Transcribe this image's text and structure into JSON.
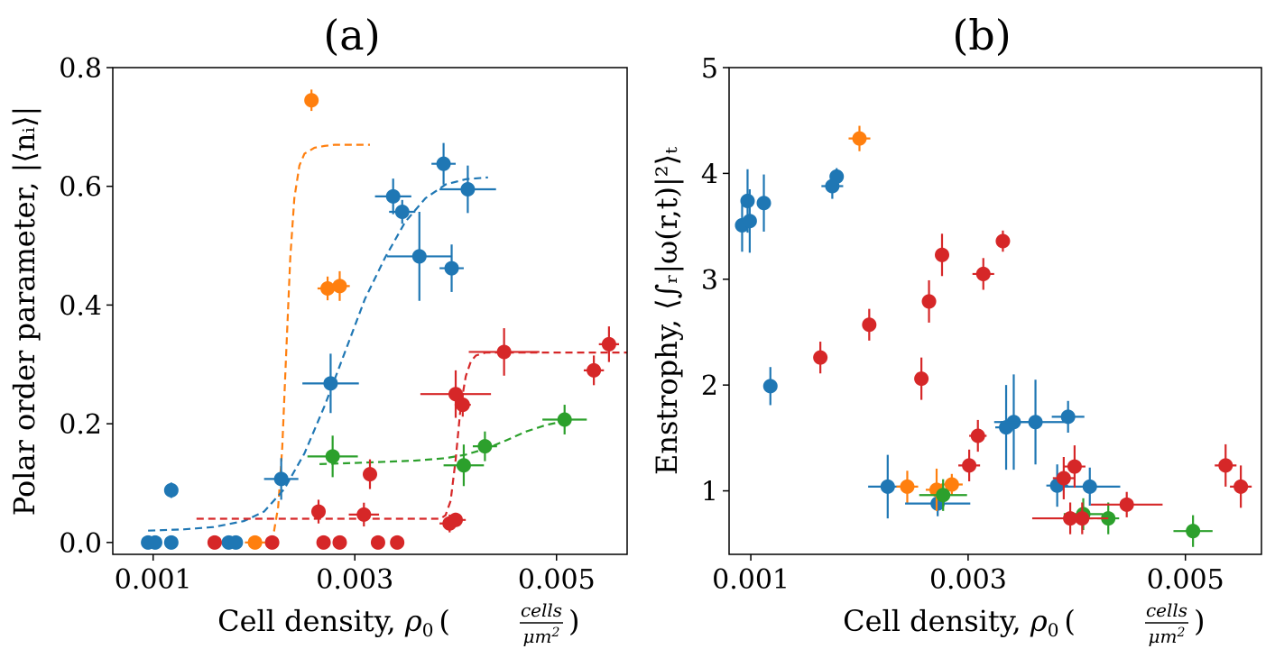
{
  "chart_data": [
    {
      "panel": "(a)",
      "type": "scatter",
      "title": "(a)",
      "xlabel": {
        "text": "Cell density, ",
        "symbol": "ρ",
        "sub": "0",
        "frac_num": "cells",
        "frac_den": "μm",
        "frac_den_sup": "2"
      },
      "ylabel": "Polar order parameter, |⟨nᵢ⟩|",
      "xlim": [
        0.0006,
        0.0057
      ],
      "ylim": [
        -0.02,
        0.8
      ],
      "xticks": [
        0.001,
        0.003,
        0.005
      ],
      "xtick_labels": [
        "0.001",
        "0.003",
        "0.005"
      ],
      "yticks": [
        0.0,
        0.2,
        0.4,
        0.6,
        0.8
      ],
      "ytick_labels": [
        "0.0",
        "0.2",
        "0.4",
        "0.6",
        "0.8"
      ],
      "series": [
        {
          "name": "blue",
          "color": "#1f77b4",
          "points": [
            {
              "x": 0.00095,
              "y": 0.0
            },
            {
              "x": 0.00102,
              "y": 0.0
            },
            {
              "x": 0.00118,
              "y": 0.0
            },
            {
              "x": 0.00118,
              "y": 0.088,
              "yerr": 0.013
            },
            {
              "x": 0.00175,
              "y": 0.0
            },
            {
              "x": 0.00182,
              "y": 0.0
            },
            {
              "x": 0.00227,
              "y": 0.107,
              "xerr": 0.00017,
              "yerr": 0.035
            },
            {
              "x": 0.00276,
              "y": 0.268,
              "xerr": 0.00028,
              "yerr": 0.05
            },
            {
              "x": 0.00338,
              "y": 0.583,
              "xerr": 0.00018,
              "yerr": 0.03
            },
            {
              "x": 0.00347,
              "y": 0.557,
              "xerr": 0.00013,
              "yerr": 0.02
            },
            {
              "x": 0.00364,
              "y": 0.482,
              "xerr": 0.00032,
              "yerr": 0.075
            },
            {
              "x": 0.00388,
              "y": 0.638,
              "xerr": 0.00012,
              "yerr": 0.035
            },
            {
              "x": 0.00396,
              "y": 0.462,
              "xerr": 0.00012,
              "yerr": 0.04
            },
            {
              "x": 0.00412,
              "y": 0.595,
              "xerr": 0.00028,
              "yerr": 0.04
            }
          ]
        },
        {
          "name": "orange",
          "color": "#ff7f0e",
          "points": [
            {
              "x": 0.00201,
              "y": 0.0,
              "xerr": 0.0001
            },
            {
              "x": 0.00257,
              "y": 0.745,
              "yerr": 0.018
            },
            {
              "x": 0.00273,
              "y": 0.428,
              "xerr": 0.0001,
              "yerr": 0.02
            },
            {
              "x": 0.00285,
              "y": 0.432,
              "xerr": 0.0001,
              "yerr": 0.025
            }
          ]
        },
        {
          "name": "green",
          "color": "#2ca02c",
          "points": [
            {
              "x": 0.00278,
              "y": 0.145,
              "xerr": 0.00025,
              "yerr": 0.035
            },
            {
              "x": 0.00408,
              "y": 0.13,
              "xerr": 0.0002,
              "yerr": 0.035
            },
            {
              "x": 0.00429,
              "y": 0.162,
              "xerr": 0.00012,
              "yerr": 0.025
            },
            {
              "x": 0.00508,
              "y": 0.207,
              "xerr": 0.00022,
              "yerr": 0.025
            }
          ]
        },
        {
          "name": "red",
          "color": "#d62728",
          "points": [
            {
              "x": 0.00161,
              "y": 0.0
            },
            {
              "x": 0.00218,
              "y": 0.0
            },
            {
              "x": 0.00264,
              "y": 0.052,
              "yerr": 0.02
            },
            {
              "x": 0.00269,
              "y": 0.0
            },
            {
              "x": 0.00285,
              "y": 0.0
            },
            {
              "x": 0.00309,
              "y": 0.047,
              "xerr": 0.00015,
              "yerr": 0.02
            },
            {
              "x": 0.00315,
              "y": 0.115,
              "yerr": 0.025
            },
            {
              "x": 0.00323,
              "y": 0.0
            },
            {
              "x": 0.00342,
              "y": 0.0
            },
            {
              "x": 0.00394,
              "y": 0.032,
              "xerr": 0.0001,
              "yerr": 0.015
            },
            {
              "x": 0.004,
              "y": 0.038,
              "xerr": 0.0001,
              "yerr": 0.012
            },
            {
              "x": 0.004,
              "y": 0.25,
              "xerr": 0.00035,
              "yerr": 0.04
            },
            {
              "x": 0.00407,
              "y": 0.232,
              "xerr": 8e-05,
              "yerr": 0.02
            },
            {
              "x": 0.00448,
              "y": 0.321,
              "xerr": 0.00035,
              "yerr": 0.04
            },
            {
              "x": 0.00537,
              "y": 0.29,
              "xerr": 0.0001,
              "yerr": 0.025
            },
            {
              "x": 0.00552,
              "y": 0.334,
              "xerr": 0.0001,
              "yerr": 0.03
            }
          ]
        }
      ],
      "fits": [
        {
          "color": "#ff7f0e",
          "x": [
            0.00216,
            0.0022,
            0.00224,
            0.00228,
            0.00232,
            0.00236,
            0.0024,
            0.00245,
            0.0025,
            0.0026,
            0.0027,
            0.0028,
            0.0029,
            0.00315
          ],
          "y": [
            0.0,
            0.02,
            0.06,
            0.16,
            0.32,
            0.48,
            0.58,
            0.635,
            0.655,
            0.665,
            0.668,
            0.67,
            0.67,
            0.67
          ]
        },
        {
          "color": "#1f77b4",
          "x": [
            0.00095,
            0.0013,
            0.0016,
            0.0019,
            0.0021,
            0.0023,
            0.0025,
            0.0027,
            0.0029,
            0.0031,
            0.0033,
            0.0035,
            0.0037,
            0.0039,
            0.0041,
            0.00432
          ],
          "y": [
            0.02,
            0.022,
            0.026,
            0.036,
            0.052,
            0.09,
            0.15,
            0.23,
            0.32,
            0.41,
            0.48,
            0.54,
            0.58,
            0.603,
            0.612,
            0.615
          ]
        },
        {
          "color": "#2ca02c",
          "x": [
            0.00265,
            0.003,
            0.0033,
            0.0036,
            0.0039,
            0.0041,
            0.0043,
            0.0045,
            0.0047,
            0.0049,
            0.0051
          ],
          "y": [
            0.132,
            0.134,
            0.136,
            0.138,
            0.142,
            0.148,
            0.158,
            0.172,
            0.187,
            0.198,
            0.205
          ]
        },
        {
          "color": "#d62728",
          "x": [
            0.00143,
            0.0025,
            0.0035,
            0.00385,
            0.0039,
            0.00395,
            0.004,
            0.00405,
            0.0041,
            0.00415,
            0.0042,
            0.0043,
            0.0045,
            0.005,
            0.0057
          ],
          "y": [
            0.04,
            0.04,
            0.04,
            0.04,
            0.046,
            0.07,
            0.14,
            0.23,
            0.28,
            0.305,
            0.315,
            0.32,
            0.32,
            0.32,
            0.32
          ]
        }
      ]
    },
    {
      "panel": "(b)",
      "type": "scatter",
      "title": "(b)",
      "xlabel": {
        "text": "Cell density, ",
        "symbol": "ρ",
        "sub": "0",
        "frac_num": "cells",
        "frac_den": "μm",
        "frac_den_sup": "2"
      },
      "ylabel": "Enstrophy, ⟨∫ᵣ|ω(r,t)|²⟩ₜ",
      "xlim": [
        0.0008,
        0.0057
      ],
      "ylim": [
        0.4,
        5.0
      ],
      "xticks": [
        0.001,
        0.003,
        0.005
      ],
      "xtick_labels": [
        "0.001",
        "0.003",
        "0.005"
      ],
      "yticks": [
        1,
        2,
        3,
        4,
        5
      ],
      "ytick_labels": [
        "1",
        "2",
        "3",
        "4",
        "5"
      ],
      "series": [
        {
          "name": "blue",
          "color": "#1f77b4",
          "points": [
            {
              "x": 0.00092,
              "y": 3.51,
              "yerr": 0.25
            },
            {
              "x": 0.00097,
              "y": 3.74,
              "yerr": 0.3
            },
            {
              "x": 0.00099,
              "y": 3.55,
              "yerr": 0.3
            },
            {
              "x": 0.00112,
              "y": 3.72,
              "yerr": 0.27
            },
            {
              "x": 0.00118,
              "y": 1.99,
              "yerr": 0.18
            },
            {
              "x": 0.00175,
              "y": 3.88,
              "xerr": 0.0001,
              "yerr": 0.12
            },
            {
              "x": 0.00179,
              "y": 3.97,
              "yerr": 0.08
            },
            {
              "x": 0.00226,
              "y": 1.04,
              "xerr": 0.00018,
              "yerr": 0.3
            },
            {
              "x": 0.00272,
              "y": 0.88,
              "xerr": 0.0003,
              "yerr": 0.12
            },
            {
              "x": 0.00335,
              "y": 1.6,
              "xerr": 0.0001,
              "yerr": 0.4
            },
            {
              "x": 0.00342,
              "y": 1.65,
              "xerr": 0.00018,
              "yerr": 0.45
            },
            {
              "x": 0.00362,
              "y": 1.65,
              "xerr": 0.00032,
              "yerr": 0.4
            },
            {
              "x": 0.00382,
              "y": 1.05,
              "xerr": 0.0001,
              "yerr": 0.2
            },
            {
              "x": 0.00392,
              "y": 1.7,
              "xerr": 0.00015,
              "yerr": 0.15
            },
            {
              "x": 0.00412,
              "y": 1.04,
              "xerr": 0.00028,
              "yerr": 0.18
            }
          ]
        },
        {
          "name": "orange",
          "color": "#ff7f0e",
          "points": [
            {
              "x": 0.002,
              "y": 4.33,
              "xerr": 0.0001,
              "yerr": 0.12
            },
            {
              "x": 0.00244,
              "y": 1.04,
              "xerr": 0.0001,
              "yerr": 0.15
            },
            {
              "x": 0.00271,
              "y": 1.01,
              "xerr": 0.0001,
              "yerr": 0.2
            },
            {
              "x": 0.00285,
              "y": 1.06,
              "xerr": 0.0001,
              "yerr": 0.1
            }
          ]
        },
        {
          "name": "green",
          "color": "#2ca02c",
          "points": [
            {
              "x": 0.00277,
              "y": 0.96,
              "xerr": 0.00022,
              "yerr": 0.15
            },
            {
              "x": 0.00406,
              "y": 0.78,
              "xerr": 0.00018,
              "yerr": 0.15
            },
            {
              "x": 0.00429,
              "y": 0.74,
              "xerr": 0.0001,
              "yerr": 0.15
            },
            {
              "x": 0.00507,
              "y": 0.62,
              "xerr": 0.00018,
              "yerr": 0.15
            }
          ]
        },
        {
          "name": "red",
          "color": "#d62728",
          "points": [
            {
              "x": 0.00164,
              "y": 2.26,
              "yerr": 0.15
            },
            {
              "x": 0.00209,
              "y": 2.57,
              "yerr": 0.15
            },
            {
              "x": 0.00257,
              "y": 2.06,
              "yerr": 0.2
            },
            {
              "x": 0.00264,
              "y": 2.79,
              "yerr": 0.2
            },
            {
              "x": 0.00276,
              "y": 3.23,
              "yerr": 0.2
            },
            {
              "x": 0.00301,
              "y": 1.24,
              "xerr": 0.0001,
              "yerr": 0.15
            },
            {
              "x": 0.00309,
              "y": 1.52,
              "xerr": 8e-05,
              "yerr": 0.15
            },
            {
              "x": 0.00314,
              "y": 3.05,
              "xerr": 0.0001,
              "yerr": 0.15
            },
            {
              "x": 0.00332,
              "y": 3.36,
              "yerr": 0.1
            },
            {
              "x": 0.00388,
              "y": 1.12,
              "xerr": 0.0001,
              "yerr": 0.2
            },
            {
              "x": 0.00394,
              "y": 0.74,
              "xerr": 0.00035,
              "yerr": 0.15
            },
            {
              "x": 0.00398,
              "y": 1.23,
              "xerr": 0.0001,
              "yerr": 0.2
            },
            {
              "x": 0.00405,
              "y": 0.74,
              "xerr": 0.0001,
              "yerr": 0.15
            },
            {
              "x": 0.00446,
              "y": 0.87,
              "xerr": 0.00033,
              "yerr": 0.12
            },
            {
              "x": 0.00537,
              "y": 1.24,
              "xerr": 0.0001,
              "yerr": 0.2
            },
            {
              "x": 0.00551,
              "y": 1.04,
              "xerr": 0.0001,
              "yerr": 0.2
            }
          ]
        }
      ],
      "fits": []
    }
  ]
}
